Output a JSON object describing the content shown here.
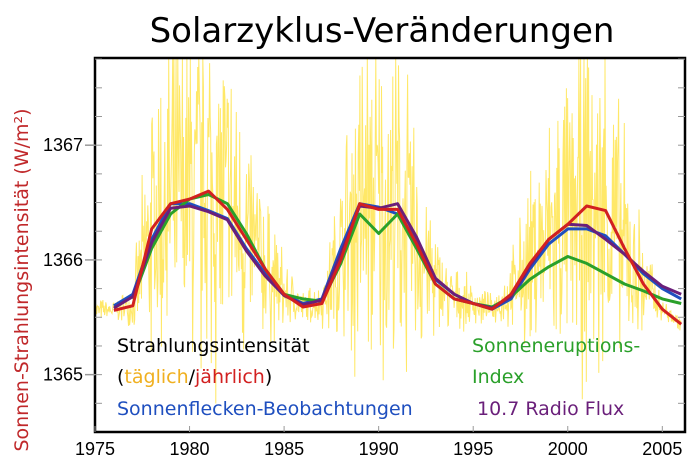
{
  "chart_data": {
    "type": "line",
    "title": "Solarzyklus-Veränderungen",
    "xlabel": "",
    "ylabel": "Sonnen-Strahlungsintensität (W/m²)",
    "xlim": [
      1975,
      2006.2
    ],
    "ylim": [
      1364.5,
      1367.76
    ],
    "xticks": [
      1975,
      1980,
      1985,
      1990,
      1995,
      2000,
      2005
    ],
    "yticks": [
      1365,
      1366,
      1367
    ],
    "grid": false,
    "legend": {
      "line1": "Strahlungsintensität",
      "open": "(",
      "daily": "täglich",
      "slash": "/",
      "yearly": "jährlich",
      "close": ")",
      "sunspots": "Sonnenflecken-Beobachtungen",
      "flare1": "Sonneneruptions-",
      "flare2": "Index",
      "radio": "10.7 Radio Flux"
    },
    "x": [
      1976,
      1977,
      1978,
      1979,
      1980,
      1981,
      1982,
      1983,
      1984,
      1985,
      1986,
      1987,
      1988,
      1989,
      1990,
      1991,
      1992,
      1993,
      1994,
      1995,
      1996,
      1997,
      1998,
      1999,
      2000,
      2001,
      2002,
      2003,
      2004,
      2005,
      2006
    ],
    "series": [
      {
        "key": "daily",
        "color": "#ffe44d",
        "values": "noisy daily values around yearly series"
      },
      {
        "key": "sunspots",
        "color": "#1f4fbf",
        "values": [
          1365.6,
          1365.7,
          1366.18,
          1366.49,
          1366.49,
          1366.43,
          1366.36,
          1366.1,
          1365.88,
          1365.7,
          1365.62,
          1365.66,
          1366.1,
          1366.49,
          1366.46,
          1366.4,
          1366.18,
          1365.83,
          1365.7,
          1365.62,
          1365.57,
          1365.66,
          1365.92,
          1366.14,
          1366.27,
          1366.27,
          1366.21,
          1366.05,
          1365.88,
          1365.75,
          1365.66
        ]
      },
      {
        "key": "flare",
        "color": "#2aa02a",
        "values": [
          null,
          1365.66,
          1366.1,
          1366.4,
          1366.53,
          1366.57,
          1366.49,
          1366.23,
          1365.92,
          1365.7,
          1365.66,
          1365.64,
          1365.97,
          1366.4,
          1366.23,
          1366.4,
          1366.1,
          1365.79,
          1365.66,
          1365.62,
          1365.59,
          1365.68,
          1365.83,
          1365.94,
          1366.03,
          1365.97,
          1365.88,
          1365.79,
          1365.73,
          1365.66,
          1365.62
        ]
      },
      {
        "key": "radio",
        "color": "#6a1f7a",
        "values": [
          1365.58,
          1365.68,
          1366.15,
          1366.45,
          1366.47,
          1366.42,
          1366.35,
          1366.08,
          1365.86,
          1365.69,
          1365.61,
          1365.65,
          1366.05,
          1366.47,
          1366.45,
          1366.49,
          1366.2,
          1365.84,
          1365.7,
          1365.62,
          1365.58,
          1365.68,
          1365.95,
          1366.18,
          1366.31,
          1366.3,
          1366.18,
          1366.05,
          1365.9,
          1365.77,
          1365.7
        ]
      },
      {
        "key": "yearly",
        "color": "#d22020",
        "values": [
          1365.56,
          1365.6,
          1366.27,
          1366.49,
          1366.53,
          1366.6,
          1366.44,
          1366.18,
          1365.92,
          1365.7,
          1365.59,
          1365.62,
          1366.0,
          1366.49,
          1366.44,
          1366.44,
          1366.14,
          1365.79,
          1365.66,
          1365.62,
          1365.57,
          1365.7,
          1365.97,
          1366.18,
          1366.31,
          1366.47,
          1366.43,
          1366.1,
          1365.79,
          1365.57,
          1365.44
        ]
      }
    ],
    "legend_colors": {
      "black": "#000000",
      "daily": "#f0b020",
      "yearly": "#d22020",
      "sunspots": "#1f4fbf",
      "flare": "#2aa02a",
      "radio": "#6a1f7a"
    }
  }
}
